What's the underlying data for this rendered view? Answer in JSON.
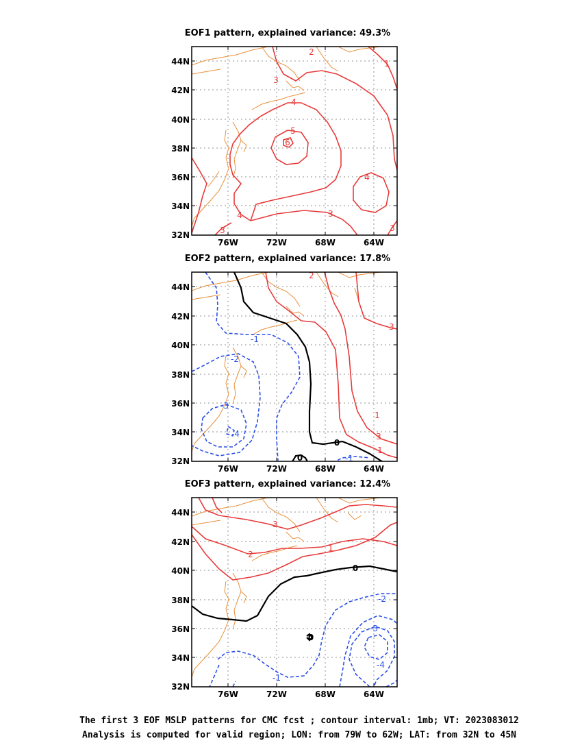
{
  "chart_data": [
    {
      "type": "contour-map",
      "title": "EOF1 pattern, explained variance: 49.3%",
      "xlim_lon": [
        -79,
        -62
      ],
      "ylim_lat": [
        32,
        45
      ],
      "xticks": [
        "76W",
        "72W",
        "68W",
        "64W"
      ],
      "yticks": [
        "32N",
        "34N",
        "36N",
        "38N",
        "40N",
        "42N",
        "44N"
      ],
      "grid": true,
      "contour_labels": [
        "2",
        "3",
        "4",
        "5",
        "6",
        "4",
        "3",
        "3",
        "3",
        "1"
      ]
    },
    {
      "type": "contour-map",
      "title": "EOF2 pattern, explained variance: 17.8%",
      "xlim_lon": [
        -79,
        -62
      ],
      "ylim_lat": [
        32,
        45
      ],
      "xticks": [
        "76W",
        "72W",
        "68W",
        "64W"
      ],
      "yticks": [
        "32N",
        "34N",
        "36N",
        "38N",
        "40N",
        "42N",
        "44N"
      ],
      "grid": true,
      "contour_labels": [
        "-1",
        "-2",
        "-3",
        "-4",
        "0",
        "0",
        "-1",
        "2",
        "3",
        "3",
        "1",
        "1"
      ]
    },
    {
      "type": "contour-map",
      "title": "EOF3 pattern, explained variance: 12.4%",
      "xlim_lon": [
        -79,
        -62
      ],
      "ylim_lat": [
        32,
        45
      ],
      "xticks": [
        "76W",
        "72W",
        "68W",
        "64W"
      ],
      "yticks": [
        "32N",
        "34N",
        "36N",
        "38N",
        "40N",
        "42N",
        "44N"
      ],
      "grid": true,
      "contour_labels": [
        "3",
        "2",
        "1",
        "0",
        "0",
        "-1",
        "-2",
        "-3",
        "-4"
      ]
    }
  ],
  "caption": {
    "line1": "The first 3 EOF MSLP patterns for CMC fcst ; contour interval: 1mb; VT: 2023083012",
    "line2": "Analysis is computed for valid region; LON: from 79W to 62W; LAT: from 32N to 45N"
  },
  "colors": {
    "positive": "#e83a3a",
    "negative": "#2a4fe8",
    "zero": "#000000",
    "coast": "#e8903a",
    "grid": "#909090"
  }
}
